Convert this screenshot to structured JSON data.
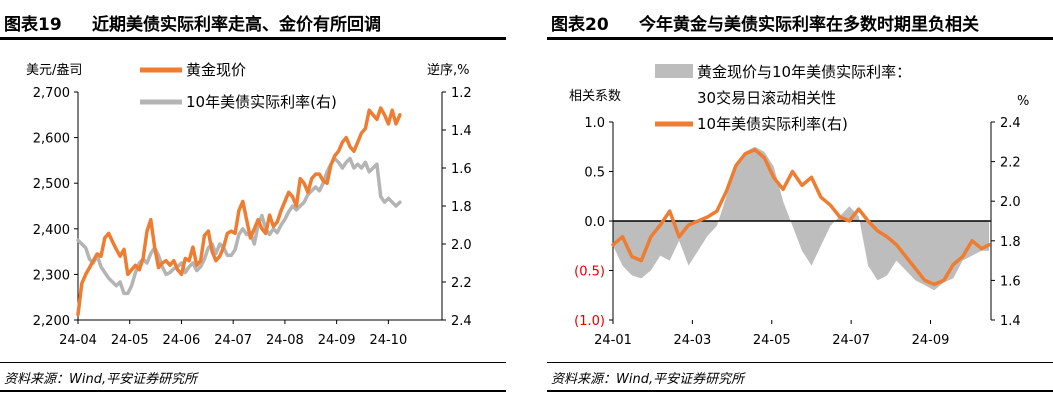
{
  "colors": {
    "orange": "#EE7D31",
    "gray_line": "#B4B4B4",
    "gray_area": "#BDBDBD",
    "red_tick": "#E00000",
    "axis": "#000000"
  },
  "chart_data": [
    {
      "type": "line",
      "figure_label": "图表19",
      "title": "近期美债实际利率走高、金价有所回调",
      "ylabel_left": "美元/盎司",
      "ylabel_right": "逆序,%",
      "xlim": [
        0,
        190
      ],
      "ylim_left": [
        2200,
        2700
      ],
      "ylim_right": [
        1.2,
        2.4
      ],
      "right_axis_inverted": true,
      "x_ticks": [
        {
          "pos": 0,
          "label": "24-04"
        },
        {
          "pos": 27,
          "label": "24-05"
        },
        {
          "pos": 54,
          "label": "24-06"
        },
        {
          "pos": 81,
          "label": "24-07"
        },
        {
          "pos": 108,
          "label": "24-08"
        },
        {
          "pos": 135,
          "label": "24-09"
        },
        {
          "pos": 162,
          "label": "24-10"
        }
      ],
      "y_ticks_left": [
        {
          "value": 2200,
          "label": "2,200"
        },
        {
          "value": 2300,
          "label": "2,300"
        },
        {
          "value": 2400,
          "label": "2,400"
        },
        {
          "value": 2500,
          "label": "2,500"
        },
        {
          "value": 2600,
          "label": "2,600"
        },
        {
          "value": 2700,
          "label": "2,700"
        }
      ],
      "y_ticks_right": [
        {
          "value": 1.2,
          "label": "1.2"
        },
        {
          "value": 1.4,
          "label": "1.4"
        },
        {
          "value": 1.6,
          "label": "1.6"
        },
        {
          "value": 1.8,
          "label": "1.8"
        },
        {
          "value": 2.0,
          "label": "2.0"
        },
        {
          "value": 2.2,
          "label": "2.2"
        },
        {
          "value": 2.4,
          "label": "2.4"
        }
      ],
      "series": [
        {
          "name": "黄金现价",
          "axis": "left",
          "color": "#EE7D31",
          "x": [
            0,
            2,
            4,
            6,
            8,
            10,
            12,
            14,
            16,
            18,
            20,
            22,
            24,
            26,
            28,
            30,
            32,
            34,
            36,
            38,
            40,
            42,
            44,
            46,
            48,
            50,
            52,
            54,
            56,
            58,
            60,
            62,
            64,
            66,
            68,
            70,
            72,
            74,
            76,
            78,
            80,
            82,
            84,
            86,
            88,
            90,
            92,
            94,
            96,
            98,
            100,
            102,
            104,
            106,
            108,
            110,
            112,
            114,
            116,
            118,
            120,
            122,
            124,
            126,
            128,
            130,
            132,
            134,
            136,
            138,
            140,
            142,
            144,
            146,
            148,
            150,
            152,
            154,
            156,
            158,
            160,
            162,
            164,
            166,
            168
          ],
          "values": [
            2212,
            2280,
            2300,
            2315,
            2330,
            2345,
            2340,
            2380,
            2390,
            2372,
            2355,
            2340,
            2355,
            2300,
            2310,
            2320,
            2310,
            2335,
            2395,
            2420,
            2360,
            2315,
            2325,
            2330,
            2320,
            2330,
            2310,
            2300,
            2335,
            2330,
            2360,
            2320,
            2330,
            2385,
            2395,
            2350,
            2330,
            2340,
            2360,
            2390,
            2395,
            2390,
            2440,
            2460,
            2420,
            2380,
            2400,
            2420,
            2400,
            2390,
            2430,
            2405,
            2415,
            2440,
            2460,
            2480,
            2470,
            2450,
            2510,
            2500,
            2480,
            2510,
            2520,
            2520,
            2505,
            2500,
            2540,
            2560,
            2570,
            2590,
            2600,
            2580,
            2570,
            2590,
            2610,
            2620,
            2660,
            2650,
            2640,
            2665,
            2650,
            2630,
            2660,
            2630,
            2650
          ]
        },
        {
          "name": "10年美债实际利率(右)",
          "axis": "right",
          "color": "#B4B4B4",
          "x": [
            0,
            2,
            4,
            6,
            8,
            10,
            12,
            14,
            16,
            18,
            20,
            22,
            24,
            26,
            28,
            30,
            32,
            34,
            36,
            38,
            40,
            42,
            44,
            46,
            48,
            50,
            52,
            54,
            56,
            58,
            60,
            62,
            64,
            66,
            68,
            70,
            72,
            74,
            76,
            78,
            80,
            82,
            84,
            86,
            88,
            90,
            92,
            94,
            96,
            98,
            100,
            102,
            104,
            106,
            108,
            110,
            112,
            114,
            116,
            118,
            120,
            122,
            124,
            126,
            128,
            130,
            132,
            134,
            136,
            138,
            140,
            142,
            144,
            146,
            148,
            150,
            152,
            154,
            156,
            158,
            160,
            162,
            164,
            166,
            168
          ],
          "values": [
            1.98,
            2.0,
            2.02,
            2.08,
            2.1,
            2.06,
            2.12,
            2.15,
            2.18,
            2.2,
            2.22,
            2.2,
            2.26,
            2.26,
            2.22,
            2.15,
            2.1,
            2.08,
            2.1,
            2.05,
            2.02,
            2.06,
            2.12,
            2.16,
            2.15,
            2.13,
            2.12,
            2.1,
            2.15,
            2.12,
            2.1,
            2.14,
            2.12,
            2.08,
            2.02,
            2.0,
            2.05,
            2.0,
            2.02,
            2.06,
            2.06,
            2.03,
            1.95,
            1.92,
            1.95,
            1.94,
            2.0,
            1.9,
            1.85,
            1.92,
            1.95,
            1.92,
            1.94,
            1.9,
            1.87,
            1.83,
            1.8,
            1.82,
            1.8,
            1.78,
            1.74,
            1.72,
            1.7,
            1.72,
            1.68,
            1.62,
            1.58,
            1.55,
            1.57,
            1.6,
            1.57,
            1.55,
            1.6,
            1.58,
            1.6,
            1.57,
            1.62,
            1.6,
            1.58,
            1.75,
            1.78,
            1.76,
            1.78,
            1.8,
            1.78
          ]
        }
      ]
    },
    {
      "type": "area",
      "figure_label": "图表20",
      "title": "今年黄金与美债实际利率在多数时期里负相关",
      "ylabel_left": "相关系数",
      "ylabel_right": "%",
      "xlim": [
        0,
        200
      ],
      "ylim_left": [
        -1.0,
        1.0
      ],
      "ylim_right": [
        1.4,
        2.4
      ],
      "x_ticks": [
        {
          "pos": 0,
          "label": "24-01"
        },
        {
          "pos": 42,
          "label": "24-03"
        },
        {
          "pos": 84,
          "label": "24-05"
        },
        {
          "pos": 126,
          "label": "24-07"
        },
        {
          "pos": 168,
          "label": "24-09"
        }
      ],
      "y_ticks_left": [
        {
          "value": 1.0,
          "label": "1.0",
          "negative": false
        },
        {
          "value": 0.5,
          "label": "0.5",
          "negative": false
        },
        {
          "value": 0.0,
          "label": "0.0",
          "negative": false
        },
        {
          "value": -0.5,
          "label": "(0.5)",
          "negative": true
        },
        {
          "value": -1.0,
          "label": "(1.0)",
          "negative": true
        }
      ],
      "y_ticks_right": [
        {
          "value": 2.4,
          "label": "2.4"
        },
        {
          "value": 2.2,
          "label": "2.2"
        },
        {
          "value": 2.0,
          "label": "2.0"
        },
        {
          "value": 1.8,
          "label": "1.8"
        },
        {
          "value": 1.6,
          "label": "1.6"
        },
        {
          "value": 1.4,
          "label": "1.4"
        }
      ],
      "series": [
        {
          "name": "黄金现价与10年美债实际利率：30交易日滚动相关性",
          "legend_line1": "黄金现价与10年美债实际利率：",
          "legend_line2": "30交易日滚动相关性",
          "axis": "left",
          "kind": "area",
          "color": "#BDBDBD",
          "x": [
            0,
            5,
            10,
            15,
            20,
            25,
            30,
            35,
            40,
            45,
            50,
            55,
            60,
            65,
            70,
            75,
            80,
            85,
            90,
            95,
            100,
            105,
            110,
            115,
            120,
            125,
            130,
            135,
            140,
            145,
            150,
            155,
            160,
            165,
            170,
            175,
            180,
            185,
            190,
            195,
            199
          ],
          "values": [
            -0.25,
            -0.45,
            -0.55,
            -0.58,
            -0.5,
            -0.35,
            -0.4,
            -0.2,
            -0.45,
            -0.3,
            -0.15,
            -0.05,
            0.25,
            0.55,
            0.7,
            0.75,
            0.7,
            0.55,
            0.2,
            -0.05,
            -0.3,
            -0.45,
            -0.25,
            -0.05,
            0.05,
            0.15,
            0.05,
            -0.45,
            -0.6,
            -0.55,
            -0.4,
            -0.5,
            -0.6,
            -0.65,
            -0.7,
            -0.62,
            -0.58,
            -0.4,
            -0.35,
            -0.3,
            -0.3
          ]
        },
        {
          "name": "10年美债实际利率(右)",
          "axis": "right",
          "kind": "line",
          "color": "#EE7D31",
          "x": [
            0,
            5,
            10,
            15,
            20,
            25,
            30,
            35,
            40,
            45,
            50,
            55,
            60,
            65,
            70,
            75,
            80,
            85,
            90,
            95,
            100,
            105,
            110,
            115,
            120,
            125,
            130,
            135,
            140,
            145,
            150,
            155,
            160,
            165,
            170,
            175,
            180,
            185,
            190,
            195,
            199
          ],
          "values": [
            1.78,
            1.82,
            1.72,
            1.7,
            1.82,
            1.88,
            1.95,
            1.82,
            1.88,
            1.9,
            1.92,
            1.95,
            2.05,
            2.18,
            2.24,
            2.26,
            2.22,
            2.12,
            2.06,
            2.15,
            2.08,
            2.12,
            2.02,
            1.98,
            1.92,
            1.9,
            1.96,
            1.9,
            1.85,
            1.82,
            1.78,
            1.72,
            1.66,
            1.6,
            1.58,
            1.6,
            1.68,
            1.72,
            1.8,
            1.76,
            1.78
          ]
        }
      ]
    }
  ],
  "sources": {
    "left": "资料来源：Wind,平安证券研究所",
    "right": "资料来源：Wind,平安证券研究所"
  }
}
